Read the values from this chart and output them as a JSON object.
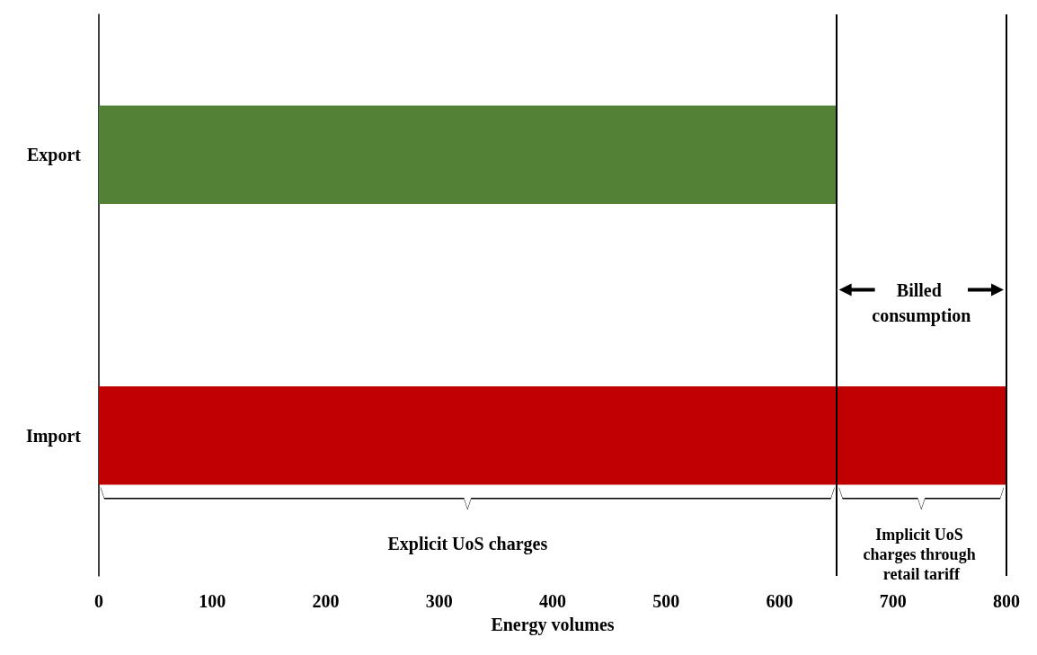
{
  "chart_data": {
    "type": "bar",
    "orientation": "horizontal",
    "xlabel": "Energy volumes",
    "categories": [
      "Export",
      "Import"
    ],
    "values": [
      650,
      800
    ],
    "colors": [
      "#538135",
      "#c00000"
    ],
    "xlim": [
      0,
      800
    ],
    "xticks": [
      0,
      100,
      200,
      300,
      400,
      500,
      600,
      700,
      800
    ],
    "ref_lines": [
      {
        "axis": "x",
        "value": 650,
        "color": "#000000"
      },
      {
        "axis": "x",
        "value": 800,
        "color": "#000000"
      }
    ],
    "annotations": [
      "Billed consumption",
      "Explicit UoS charges",
      "Implicit UoS charges through retail tariff"
    ],
    "grid": false
  }
}
